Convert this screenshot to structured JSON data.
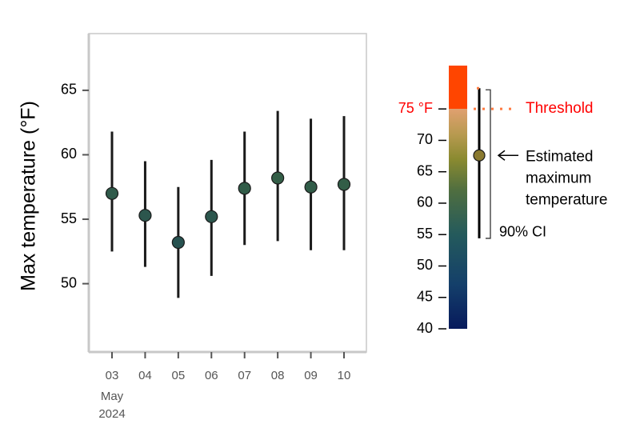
{
  "chart_data": {
    "type": "errorbar",
    "y_label": "Max temperature (°F)",
    "categories": [
      "03",
      "04",
      "05",
      "06",
      "07",
      "08",
      "09",
      "10"
    ],
    "x_month": "May",
    "x_year": "2024",
    "series": [
      {
        "values": [
          57.0,
          55.3,
          53.2,
          55.2,
          57.4,
          58.2,
          57.5,
          57.7
        ],
        "lower": [
          52.5,
          51.3,
          48.9,
          50.6,
          53.0,
          53.3,
          52.6,
          52.6
        ],
        "upper": [
          61.8,
          59.5,
          57.5,
          59.6,
          61.8,
          63.4,
          62.8,
          63.0
        ],
        "colors": [
          "#2f5a4a",
          "#2c564d",
          "#275250",
          "#2c564d",
          "#315c48",
          "#335e47",
          "#315c48",
          "#325d47"
        ],
        "line_color": "#1a1a1a"
      }
    ],
    "ylim": [
      44.7,
      69.4
    ],
    "yticks": [
      50,
      55,
      60,
      65
    ],
    "colorbar": {
      "lim": [
        40,
        81.9
      ],
      "ticks": [
        40,
        45,
        50,
        55,
        60,
        65,
        70,
        {
          "value": 75,
          "label": "75 °F"
        }
      ],
      "stops": [
        {
          "value": 40,
          "color": "#071a5c"
        },
        {
          "value": 47,
          "color": "#143f6a"
        },
        {
          "value": 55,
          "color": "#245a5c"
        },
        {
          "value": 62,
          "color": "#4f6e40"
        },
        {
          "value": 67,
          "color": "#8a8a30"
        },
        {
          "value": 71,
          "color": "#b89a50"
        },
        {
          "value": 75,
          "color": "#e0a070"
        },
        {
          "value": 75,
          "color": "#ff4500"
        },
        {
          "value": 81.9,
          "color": "#ff4500"
        }
      ],
      "threshold": 75,
      "threshold_color": "#ff7a40",
      "threshold_label": "Threshold",
      "threshold_label_color": "#ff0000",
      "example_value": 67.6,
      "example_lower": 54.4,
      "example_upper": 78.3,
      "example_color": "#8a7a30",
      "estimate_label": [
        "Estimated",
        "maximum",
        "temperature"
      ],
      "ci_label": "90% CI"
    }
  }
}
